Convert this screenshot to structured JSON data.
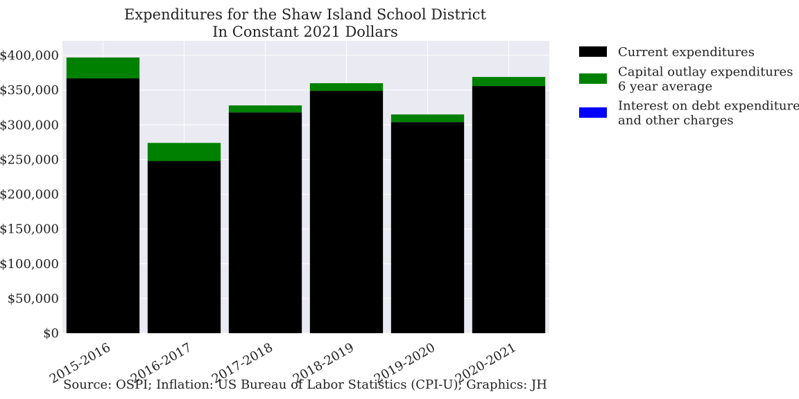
{
  "chart_data": {
    "type": "bar",
    "stacked": true,
    "title": [
      "Expenditures for the Shaw Island School District",
      "In Constant 2021 Dollars"
    ],
    "categories": [
      "2015-2016",
      "2016-2017",
      "2017-2018",
      "2018-2019",
      "2019-2020",
      "2020-2021"
    ],
    "series": [
      {
        "name": "Current expenditures",
        "color": "#000000",
        "values": [
          367000,
          248000,
          318000,
          349000,
          304000,
          356000
        ]
      },
      {
        "name": "Capital outlay expenditures\n6 year average",
        "color": "#008000",
        "values": [
          30000,
          26000,
          10000,
          11000,
          11000,
          13000
        ]
      },
      {
        "name": "Interest on debt expenditures\nand other charges",
        "color": "#0000ff",
        "values": [
          0,
          0,
          0,
          0,
          0,
          0
        ]
      }
    ],
    "ylim": [
      0,
      400000
    ],
    "yticks": [
      0,
      50000,
      100000,
      150000,
      200000,
      250000,
      300000,
      350000,
      400000
    ],
    "ytick_labels": [
      "$0",
      "$50,000",
      "$100,000",
      "$150,000",
      "$200,000",
      "$250,000",
      "$300,000",
      "$350,000",
      "$400,000"
    ],
    "xlabel": "",
    "ylabel": "",
    "grid": true,
    "legend_position": "outside-right",
    "plot_background": "#eaeaf2"
  },
  "footer": {
    "source": "Source: OSPI; Inflation: US Bureau of Labor Statistics (CPI-U); Graphics: JH"
  }
}
